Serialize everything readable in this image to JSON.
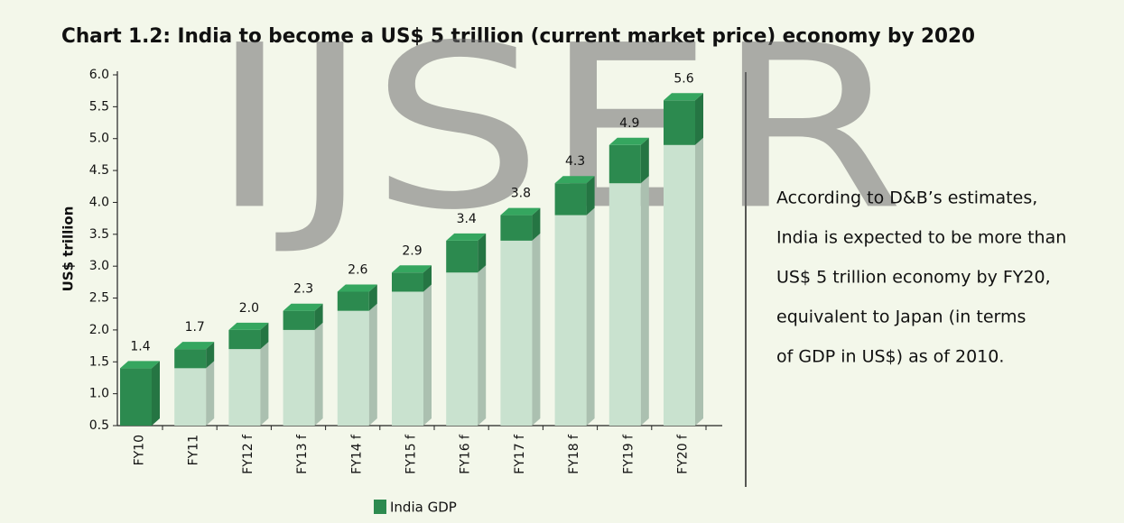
{
  "chart_data": {
    "type": "bar3d",
    "title": "Chart 1.2: India to become a US$ 5 trillion (current market price) economy by 2020",
    "y_label": "US$ trillion",
    "categories": [
      "FY10",
      "FY11",
      "FY12 f",
      "FY13 f",
      "FY14 f",
      "FY15 f",
      "FY16 f",
      "FY17 f",
      "FY18 f",
      "FY19 f",
      "FY20 f"
    ],
    "series": [
      {
        "name": "India GDP",
        "color": "#2c8a4f",
        "values": [
          1.4,
          1.7,
          2.0,
          2.3,
          2.6,
          2.9,
          3.4,
          3.8,
          4.3,
          4.9,
          5.6
        ],
        "value_labels": [
          "1.4",
          "1.7",
          "2.0",
          "2.3",
          "2.6",
          "2.9",
          "3.4",
          "3.8",
          "4.3",
          "4.9",
          "5.6"
        ]
      }
    ],
    "base_color": "#c9e2cf",
    "ylim": [
      0.5,
      6.0
    ],
    "yticks": [
      {
        "value": 0.5,
        "label": "0.5"
      },
      {
        "value": 1,
        "label": "1.0"
      },
      {
        "value": 1.5,
        "label": "1.5"
      },
      {
        "value": 2,
        "label": "2.0"
      },
      {
        "value": 2.5,
        "label": "2.5"
      },
      {
        "value": 3,
        "label": "3.0"
      },
      {
        "value": 3.5,
        "label": "3.5"
      },
      {
        "value": 4,
        "label": "4.0"
      },
      {
        "value": 4.5,
        "label": "4.5"
      },
      {
        "value": 5,
        "label": "5.0"
      },
      {
        "value": 5.5,
        "label": "5.5"
      },
      {
        "value": 6,
        "label": "6.0"
      }
    ],
    "annotation": [
      "According to D&B’s estimates,",
      "India is expected to be more than",
      "US$ 5 trillion economy by FY20,",
      "equivalent to Japan (in terms",
      "of GDP in US$) as of 2010."
    ],
    "watermark": "IJSER"
  }
}
